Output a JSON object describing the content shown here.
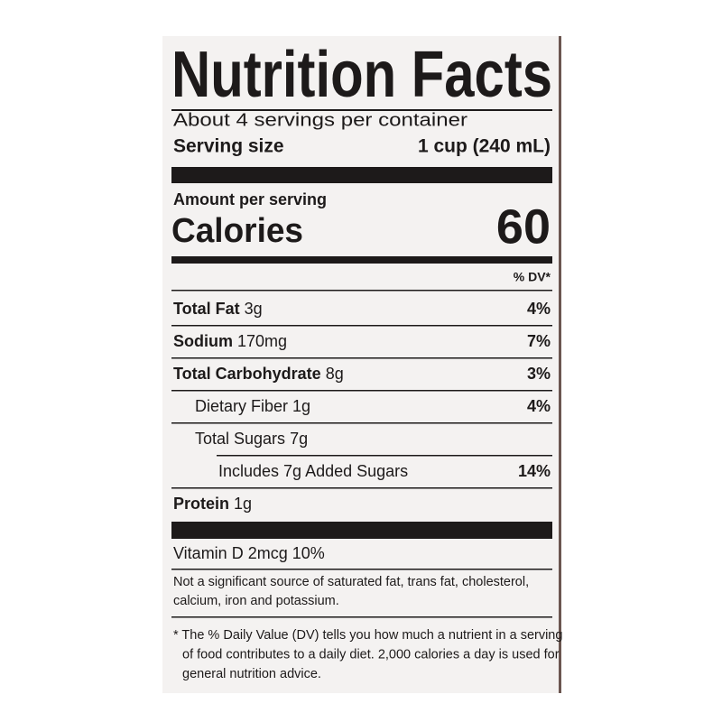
{
  "label": {
    "title": "Nutrition Facts",
    "servings_per_container": "About 4 servings per container",
    "serving_size_label": "Serving size",
    "serving_size": "1 cup (240 mL)",
    "amount_per_serving": "Amount per serving",
    "calories_label": "Calories",
    "calories": 60,
    "dv_header": "% DV*",
    "nutrients": [
      {
        "name": "Total Fat",
        "amount": "3g",
        "dv": "4%",
        "level": 0
      },
      {
        "name": "Sodium",
        "amount": "170mg",
        "dv": "7%",
        "level": 0
      },
      {
        "name": "Total Carbohydrate",
        "amount": "8g",
        "dv": "3%",
        "level": 0
      },
      {
        "name": "Dietary Fiber",
        "amount": "1g",
        "dv": "4%",
        "level": 1
      },
      {
        "name": "Total Sugars",
        "amount": "7g",
        "level": 1
      },
      {
        "name": "Includes 7g Added Sugars",
        "dv": "14%",
        "level": 2
      },
      {
        "name": "Protein",
        "amount": "1g",
        "level": 0
      }
    ],
    "vitamins": [
      {
        "name": "Vitamin D",
        "amount": "2mcg",
        "dv": "10%"
      }
    ],
    "not_significant": [
      "Not a significant source of saturated fat, trans fat, cholesterol,",
      "calcium, iron and potassium."
    ],
    "footnote": [
      "* The % Daily Value (DV) tells you how much a nutrient in a serving",
      "of food contributes to a daily diet. 2,000 calories a day is used for",
      "general nutrition advice."
    ]
  }
}
